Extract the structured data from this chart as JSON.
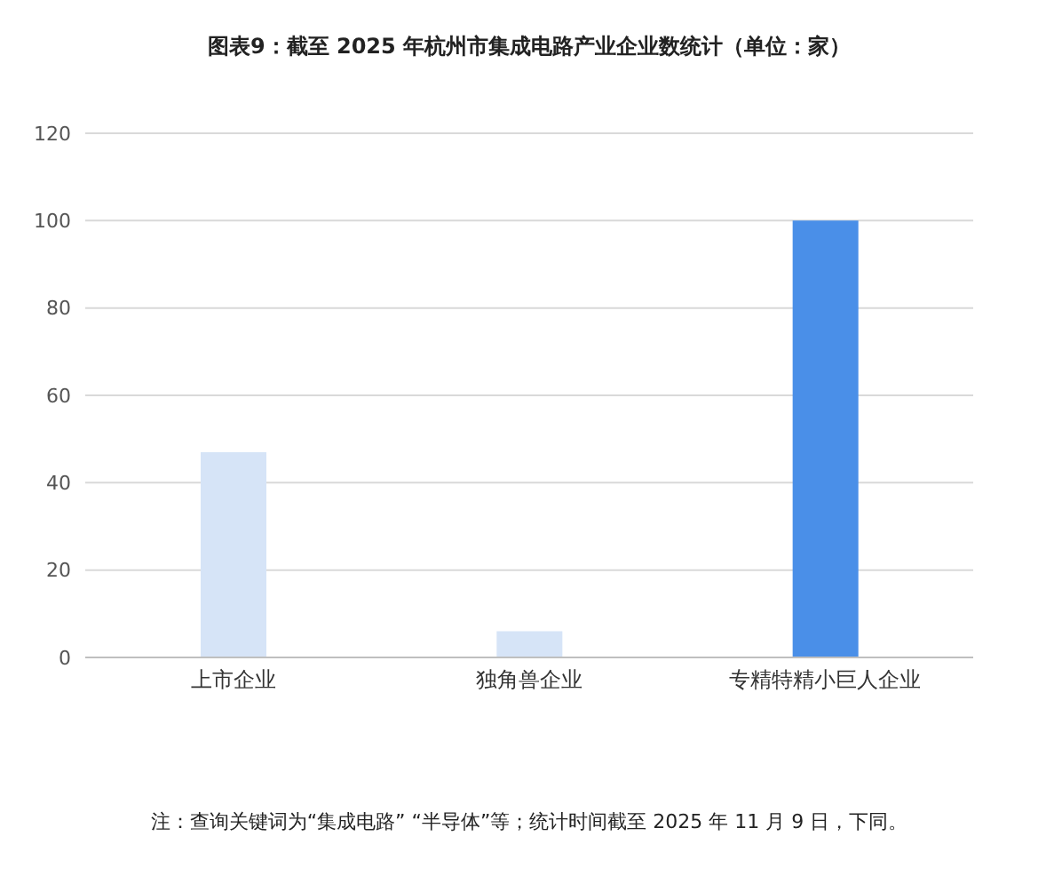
{
  "chart_data": {
    "type": "bar",
    "title": "图表9：截至 2025 年杭州市集成电路产业企业数统计（单位：家）",
    "categories": [
      "上市企业",
      "独角兽企业",
      "专精特精小巨人企业"
    ],
    "values": [
      47,
      6,
      100
    ],
    "colors": [
      "#d6e4f7",
      "#d6e4f7",
      "#4a8fe8"
    ],
    "ylim": [
      0,
      120
    ],
    "yticks": [
      0,
      20,
      40,
      60,
      80,
      100,
      120
    ],
    "grid": "y",
    "annotations": [
      "注：查询关键词为“集成电路” “半导体”等；统计时间截至 2025 年 11 月 9 日，下同。"
    ]
  }
}
